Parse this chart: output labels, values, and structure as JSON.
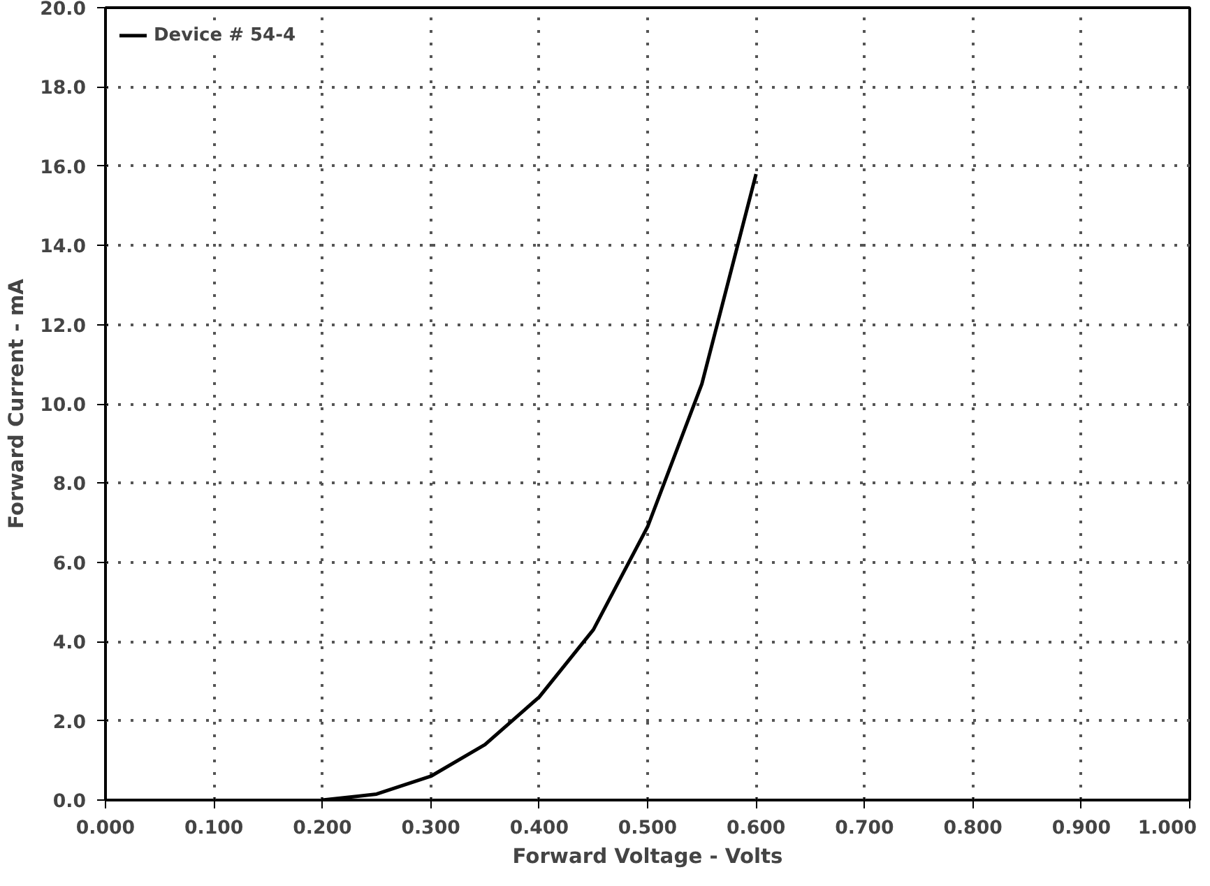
{
  "chart_data": {
    "type": "line",
    "xlabel": "Forward Voltage - Volts",
    "ylabel": "Forward Current - mA",
    "x": [
      0.2,
      0.25,
      0.3,
      0.35,
      0.4,
      0.45,
      0.5,
      0.55,
      0.6
    ],
    "series": [
      {
        "name": "Device # 54-4",
        "color": "#000000",
        "values": [
          0.0,
          0.15,
          0.6,
          1.4,
          2.6,
          4.3,
          6.9,
          10.5,
          15.8
        ]
      }
    ],
    "xlim": [
      0,
      1
    ],
    "ylim": [
      0,
      20
    ],
    "xticks": [
      {
        "value": 0,
        "label": "0.000"
      },
      {
        "value": 0.1,
        "label": "0.100"
      },
      {
        "value": 0.2,
        "label": "0.200"
      },
      {
        "value": 0.3,
        "label": "0.300"
      },
      {
        "value": 0.4,
        "label": "0.400"
      },
      {
        "value": 0.5,
        "label": "0.500"
      },
      {
        "value": 0.6,
        "label": "0.600"
      },
      {
        "value": 0.7,
        "label": "0.700"
      },
      {
        "value": 0.8,
        "label": "0.800"
      },
      {
        "value": 0.9,
        "label": "0.900"
      },
      {
        "value": 1,
        "label": "1.000"
      }
    ],
    "yticks": [
      {
        "value": 0,
        "label": "0.0"
      },
      {
        "value": 2,
        "label": "2.0"
      },
      {
        "value": 4,
        "label": "4.0"
      },
      {
        "value": 6,
        "label": "6.0"
      },
      {
        "value": 8,
        "label": "8.0"
      },
      {
        "value": 10,
        "label": "10.0"
      },
      {
        "value": 12,
        "label": "12.0"
      },
      {
        "value": 14,
        "label": "14.0"
      },
      {
        "value": 16,
        "label": "16.0"
      },
      {
        "value": 18,
        "label": "18.0"
      },
      {
        "value": 20,
        "label": "20.0"
      }
    ],
    "grid": true,
    "legend": "top left",
    "line_style": "solid",
    "marker": "none"
  }
}
